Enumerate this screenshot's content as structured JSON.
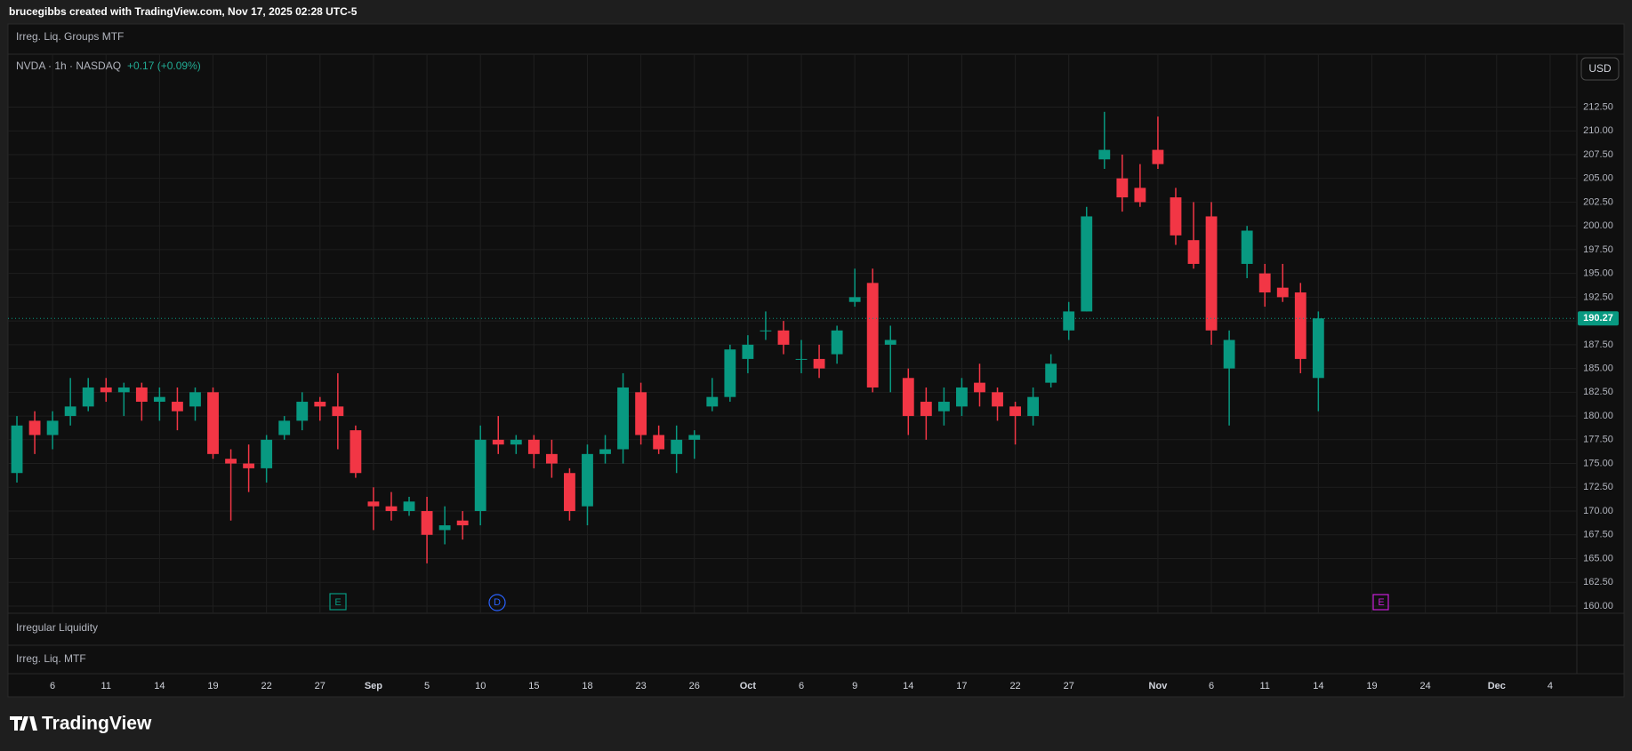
{
  "header": {
    "credit": "brucegibbs created with TradingView.com, Nov 17, 2025 02:28 UTC-5"
  },
  "indicator_title": "Irreg. Liq. Groups MTF",
  "currency_button": "USD",
  "panes": [
    "Irregular Liquidity",
    "Irreg. Liq. MTF"
  ],
  "events": [
    {
      "label": "E"
    },
    {
      "label": "D"
    },
    {
      "label": "E"
    }
  ],
  "footer": {
    "brand": "TradingView"
  },
  "chart_data": {
    "type": "candlestick",
    "symbol": "NVDA · 1h · NASDAQ",
    "change": "+0.17 (+0.09%)",
    "up_color": "#089981",
    "down_color": "#f23645",
    "grid": true,
    "last_price": 190.27,
    "categories": [
      null,
      null,
      "6",
      null,
      null,
      "11",
      null,
      null,
      "14",
      null,
      null,
      "19",
      null,
      null,
      "22",
      null,
      null,
      "27",
      null,
      null,
      "Sep",
      null,
      null,
      "5",
      null,
      null,
      "10",
      null,
      null,
      "15",
      null,
      null,
      "18",
      null,
      null,
      "23",
      null,
      null,
      "26",
      null,
      null,
      "Oct",
      null,
      null,
      "6",
      null,
      null,
      "9",
      null,
      null,
      "14",
      null,
      null,
      "17",
      null,
      null,
      "22",
      null,
      null,
      "27",
      null,
      null,
      null,
      null,
      "Nov",
      null,
      null,
      "6",
      null,
      null,
      "11",
      null,
      null,
      "14",
      null,
      null,
      "19",
      null,
      null,
      "24",
      null,
      null,
      null,
      "Dec",
      null,
      null,
      "4",
      null
    ],
    "open": [
      174,
      179.5,
      178,
      180,
      181,
      183,
      182.5,
      183,
      181.5,
      181.5,
      181,
      182.5,
      175.5,
      175,
      174.5,
      178,
      179.5,
      181.5,
      181,
      178.5,
      171,
      170.5,
      170,
      170,
      168,
      169,
      170,
      177.5,
      177,
      177.5,
      176,
      174,
      170.5,
      176,
      176.5,
      182.5,
      178,
      176,
      177.5,
      181,
      182,
      186,
      189,
      189,
      186,
      186,
      186.5,
      192,
      194,
      187.5,
      184,
      181.5,
      180.5,
      181,
      183.5,
      182.5,
      181,
      180,
      183.5,
      189,
      191,
      207,
      205,
      204,
      208,
      203,
      198.5,
      201,
      185,
      196,
      195,
      193.5,
      193,
      184,
      null,
      null,
      null,
      null,
      null,
      null,
      null,
      null,
      null,
      null,
      null,
      null,
      null,
      null
    ],
    "high": [
      180,
      180.5,
      180.5,
      184,
      184,
      184,
      183.5,
      183.5,
      183,
      183,
      183,
      183,
      176.5,
      177,
      178,
      180,
      182.5,
      182,
      184.5,
      179,
      172.5,
      172,
      171.5,
      171.5,
      170.5,
      170,
      179,
      180,
      178,
      178,
      177.5,
      174.5,
      177,
      178,
      184.5,
      183.5,
      179,
      179,
      178.5,
      184,
      187.5,
      188.5,
      191,
      190,
      188,
      187.5,
      189.5,
      195.5,
      195.5,
      189.5,
      185,
      183,
      183,
      184,
      185.5,
      183,
      181.5,
      183,
      186.5,
      192,
      202,
      212,
      207.5,
      206.5,
      211.5,
      204,
      202.5,
      202.5,
      189,
      200,
      196,
      196,
      194,
      191,
      null,
      null,
      null,
      null,
      null,
      null,
      null,
      null,
      null,
      null,
      null,
      null,
      null,
      null
    ],
    "low": [
      173,
      176,
      176.5,
      179,
      180.5,
      181.5,
      180,
      179.5,
      179.5,
      178.5,
      179.5,
      175.5,
      169,
      172,
      173,
      177.5,
      178.5,
      179.5,
      176.5,
      173.5,
      168,
      169,
      169.5,
      164.5,
      166.5,
      167,
      168.5,
      176,
      176,
      174.5,
      173.5,
      169,
      168.5,
      175,
      175,
      177,
      176,
      174,
      175.5,
      180.5,
      181.5,
      184.5,
      188,
      186.5,
      184.5,
      184,
      185.5,
      191.5,
      182.5,
      182.5,
      178,
      177.5,
      179,
      180,
      181,
      179.5,
      177,
      179,
      183,
      188,
      191,
      206,
      201.5,
      202,
      206,
      198,
      195.5,
      187.5,
      179,
      194.5,
      191.5,
      192,
      184.5,
      180.5,
      null,
      null,
      null,
      null,
      null,
      null,
      null,
      null,
      null,
      null,
      null,
      null,
      null,
      null
    ],
    "close": [
      179,
      178,
      179.5,
      181,
      183,
      182.5,
      183,
      181.5,
      182,
      180.5,
      182.5,
      176,
      175,
      174.5,
      177.5,
      179.5,
      181.5,
      181,
      180,
      174,
      170.5,
      170,
      171,
      167.5,
      168.5,
      168.5,
      177.5,
      177,
      177.5,
      176,
      175,
      170,
      176,
      176.5,
      183,
      178,
      176.5,
      177.5,
      178,
      182,
      187,
      187.5,
      189,
      187.5,
      186,
      185,
      189,
      192.5,
      183,
      188,
      180,
      180,
      181.5,
      183,
      182.5,
      181,
      180,
      182,
      185.5,
      191,
      201,
      208,
      203,
      202.5,
      206.5,
      199,
      196,
      189,
      188,
      199.5,
      193,
      192.5,
      186,
      190.27,
      null,
      null,
      null,
      null,
      null,
      null,
      null,
      null,
      null,
      null,
      null,
      null,
      null,
      null
    ],
    "ylim": [
      159.25,
      218.06
    ],
    "yticks": [
      {
        "value": 160,
        "label": "160.00"
      },
      {
        "value": 162.5,
        "label": "162.50"
      },
      {
        "value": 165,
        "label": "165.00"
      },
      {
        "value": 167.5,
        "label": "167.50"
      },
      {
        "value": 170,
        "label": "170.00"
      },
      {
        "value": 172.5,
        "label": "172.50"
      },
      {
        "value": 175,
        "label": "175.00"
      },
      {
        "value": 177.5,
        "label": "177.50"
      },
      {
        "value": 180,
        "label": "180.00"
      },
      {
        "value": 182.5,
        "label": "182.50"
      },
      {
        "value": 185,
        "label": "185.00"
      },
      {
        "value": 187.5,
        "label": "187.50"
      },
      {
        "value": 190,
        "label": "190.00"
      },
      {
        "value": 192.5,
        "label": "192.50"
      },
      {
        "value": 195,
        "label": "195.00"
      },
      {
        "value": 197.5,
        "label": "197.50"
      },
      {
        "value": 200,
        "label": "200.00"
      },
      {
        "value": 202.5,
        "label": "202.50"
      },
      {
        "value": 205,
        "label": "205.00"
      },
      {
        "value": 207.5,
        "label": "207.50"
      },
      {
        "value": 210,
        "label": "210.00"
      },
      {
        "value": 212.5,
        "label": "212.50"
      }
    ]
  }
}
